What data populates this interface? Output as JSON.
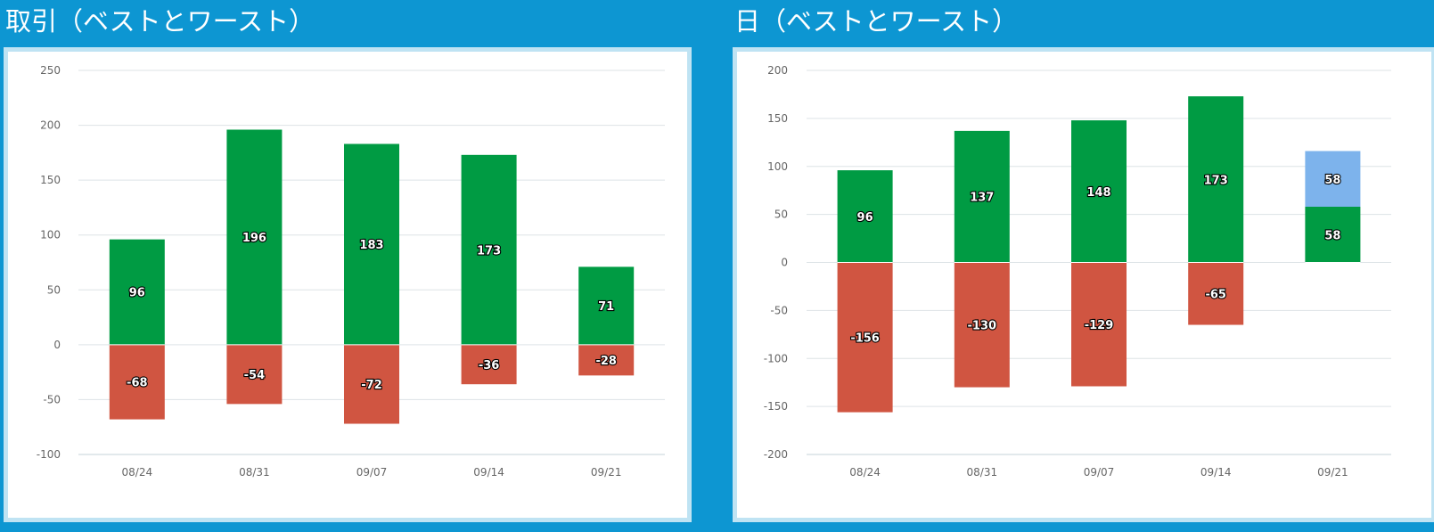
{
  "colors": {
    "background": "#0d96d2",
    "positive": "#009b43",
    "negative": "#d05541",
    "highlight": "#7db3ec",
    "grid": "#dde3e6",
    "tick_text": "#666666"
  },
  "panels": [
    {
      "title": "取引（ベストとワースト）"
    },
    {
      "title": "日（ベストとワースト）"
    }
  ],
  "chart_data": [
    {
      "type": "bar",
      "stacked": true,
      "categories": [
        "08/24",
        "08/31",
        "09/07",
        "09/14",
        "09/21"
      ],
      "ylim": [
        -100,
        250
      ],
      "yticks": [
        250,
        200,
        150,
        100,
        50,
        0,
        -50,
        -100
      ],
      "grid": true,
      "series": [
        {
          "color": "#009b43",
          "values": [
            96,
            196,
            183,
            173,
            71
          ]
        },
        {
          "color": "#d05541",
          "values": [
            -68,
            -54,
            -72,
            -36,
            -28
          ]
        }
      ]
    },
    {
      "type": "bar",
      "stacked": true,
      "categories": [
        "08/24",
        "08/31",
        "09/07",
        "09/14",
        "09/21"
      ],
      "ylim": [
        -200,
        200
      ],
      "yticks": [
        200,
        150,
        100,
        50,
        0,
        -50,
        -100,
        -150,
        -200
      ],
      "grid": true,
      "series": [
        {
          "color": "#009b43",
          "values": [
            96,
            137,
            148,
            173,
            58
          ]
        },
        {
          "color": "#7db3ec",
          "values": [
            null,
            null,
            null,
            null,
            58
          ]
        },
        {
          "color": "#d05541",
          "values": [
            -156,
            -130,
            -129,
            -65,
            null
          ]
        }
      ]
    }
  ]
}
